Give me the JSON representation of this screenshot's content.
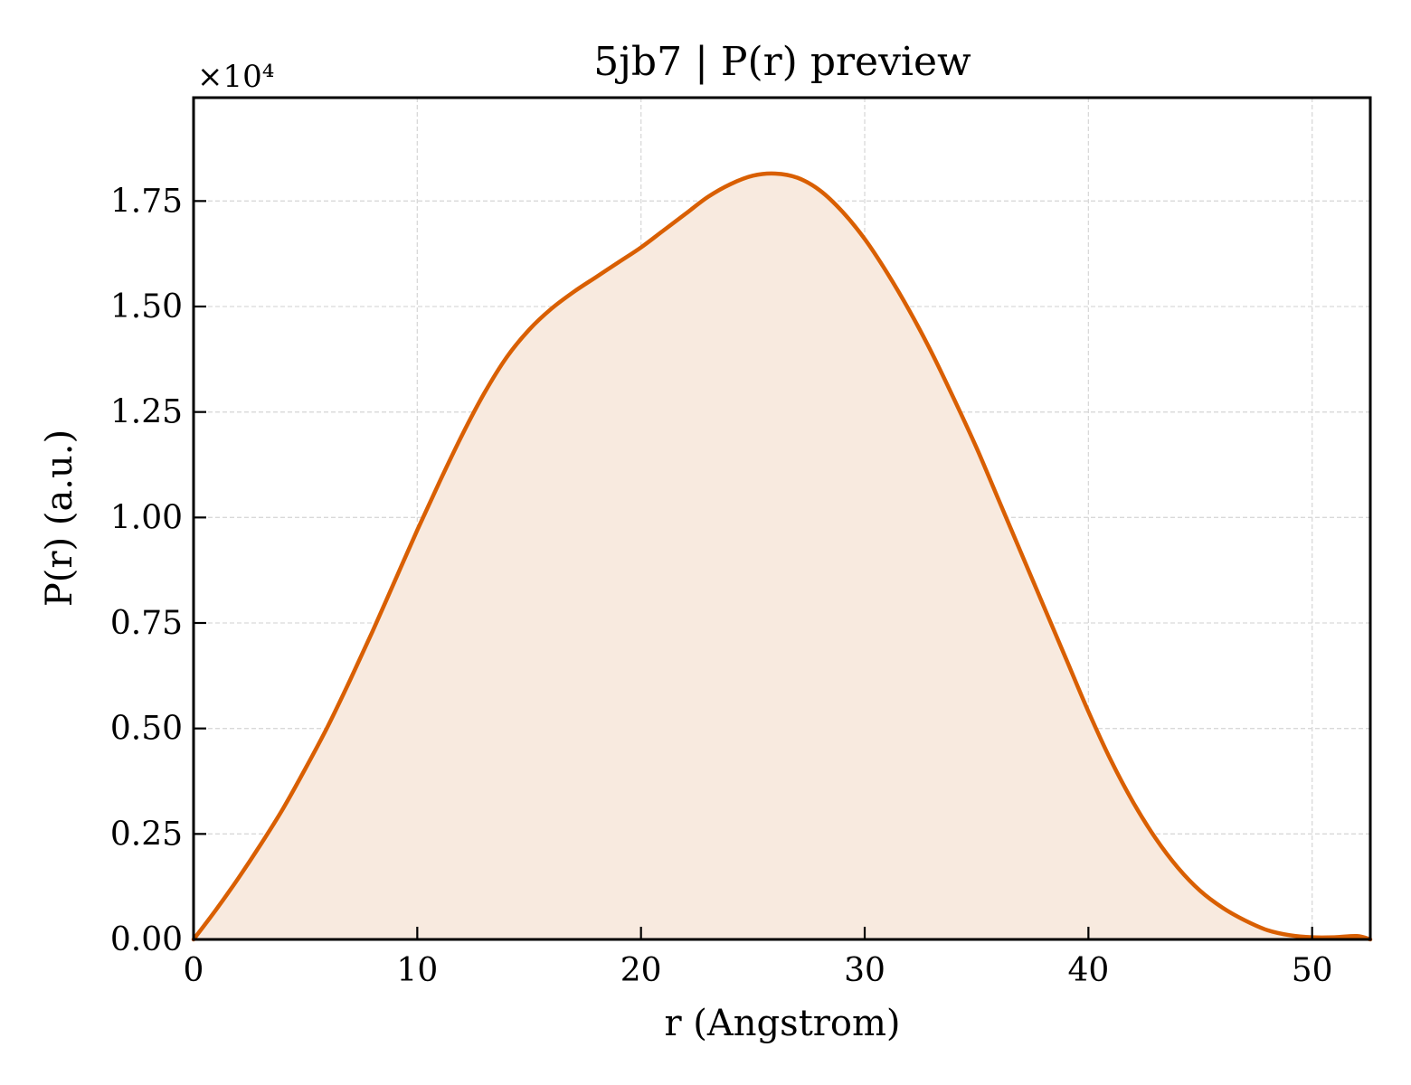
{
  "chart_data": {
    "type": "area",
    "title": "5jb7 | P(r) preview",
    "xlabel": "r (Angstrom)",
    "ylabel": "P(r) (a.u.)",
    "y_multiplier_label": "×10⁴",
    "y_scale_factor": 10000,
    "xlim": [
      0,
      52.6
    ],
    "ylim": [
      0,
      1.995
    ],
    "x_ticks": [
      0,
      10,
      20,
      30,
      40,
      50
    ],
    "x_tick_labels": [
      "0",
      "10",
      "20",
      "30",
      "40",
      "50"
    ],
    "y_ticks": [
      0,
      0.25,
      0.5,
      0.75,
      1.0,
      1.25,
      1.5,
      1.75
    ],
    "y_tick_labels": [
      "0.00",
      "0.25",
      "0.50",
      "0.75",
      "1.00",
      "1.25",
      "1.50",
      "1.75"
    ],
    "grid": true,
    "line_color": "#d95f02",
    "fill_color": "#f8eadf",
    "series": [
      {
        "x": [
          0,
          1,
          2,
          3,
          4,
          5,
          6,
          7,
          8,
          9,
          10,
          11,
          12,
          13,
          14,
          15,
          16,
          17,
          18,
          19,
          20,
          21,
          22,
          23,
          24,
          25,
          26,
          27,
          28,
          29,
          30,
          31,
          32,
          33,
          34,
          35,
          36,
          37,
          38,
          39,
          40,
          41,
          42,
          43,
          44,
          45,
          46,
          47,
          48,
          49,
          50,
          51,
          52,
          52.6
        ],
        "y": [
          0.0,
          0.07,
          0.145,
          0.225,
          0.31,
          0.405,
          0.505,
          0.615,
          0.73,
          0.85,
          0.97,
          1.085,
          1.195,
          1.295,
          1.38,
          1.445,
          1.495,
          1.535,
          1.57,
          1.605,
          1.64,
          1.68,
          1.72,
          1.76,
          1.79,
          1.81,
          1.815,
          1.805,
          1.775,
          1.725,
          1.66,
          1.58,
          1.49,
          1.39,
          1.28,
          1.165,
          1.04,
          0.915,
          0.79,
          0.665,
          0.54,
          0.425,
          0.325,
          0.24,
          0.17,
          0.115,
          0.075,
          0.045,
          0.022,
          0.01,
          0.005,
          0.005,
          0.008,
          0.0
        ]
      }
    ]
  }
}
